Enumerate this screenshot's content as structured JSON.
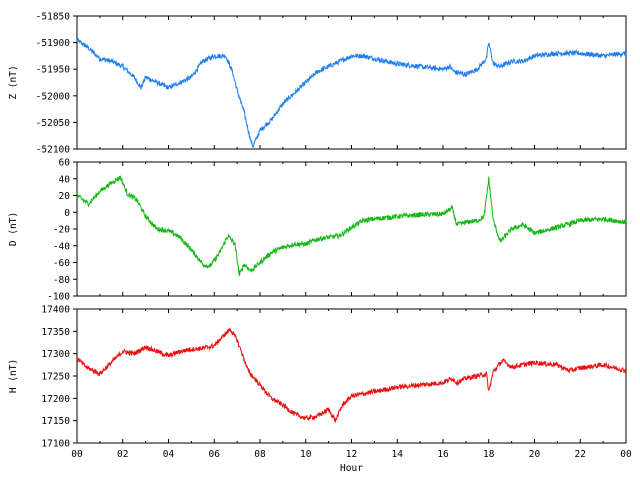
{
  "chart_data": [
    {
      "type": "line",
      "ylabel": "Z (nT)",
      "ylim": [
        -52100,
        -51850
      ],
      "yticks": [
        -51850,
        -51900,
        -51950,
        -52000,
        -52050,
        -52100
      ],
      "xlim": [
        0,
        24
      ],
      "grid": false,
      "series": [
        {
          "color": "#1e7ef0",
          "x": [
            0,
            0.5,
            1,
            1.5,
            2,
            2.5,
            2.8,
            3,
            3.5,
            4,
            4.5,
            5,
            5.5,
            6,
            6.5,
            6.8,
            7,
            7.3,
            7.6,
            7.7,
            8,
            8.5,
            9,
            9.5,
            10,
            10.5,
            11,
            11.5,
            12,
            12.5,
            13,
            13.5,
            14,
            15,
            16,
            16.3,
            16.5,
            17,
            17.5,
            17.9,
            18,
            18.2,
            18.5,
            19,
            19.5,
            20,
            21,
            22,
            23,
            24
          ],
          "y": [
            -51895,
            -51910,
            -51930,
            -51935,
            -51945,
            -51965,
            -51985,
            -51965,
            -51975,
            -51985,
            -51975,
            -51965,
            -51935,
            -51925,
            -51925,
            -51955,
            -51990,
            -52030,
            -52085,
            -52095,
            -52065,
            -52045,
            -52015,
            -51995,
            -51975,
            -51955,
            -51945,
            -51935,
            -51925,
            -51925,
            -51930,
            -51935,
            -51940,
            -51945,
            -51950,
            -51945,
            -51955,
            -51960,
            -51950,
            -51930,
            -51900,
            -51940,
            -51945,
            -51935,
            -51935,
            -51925,
            -51920,
            -51920,
            -51925,
            -51920
          ]
        }
      ]
    },
    {
      "type": "line",
      "ylabel": "D (nT)",
      "ylim": [
        -100,
        60
      ],
      "yticks": [
        60,
        40,
        20,
        0,
        -20,
        -40,
        -60,
        -80,
        -100
      ],
      "xlim": [
        0,
        24
      ],
      "grid": false,
      "series": [
        {
          "color": "#14b814",
          "x": [
            0,
            0.5,
            1,
            1.5,
            1.9,
            2.2,
            2.6,
            3,
            3.5,
            4,
            4.5,
            5,
            5.5,
            5.8,
            6.2,
            6.6,
            6.9,
            7.1,
            7.3,
            7.6,
            8,
            8.5,
            9,
            9.5,
            10,
            10.5,
            11,
            11.5,
            12,
            12.5,
            13,
            14,
            15,
            16,
            16.4,
            16.6,
            17,
            17.5,
            17.8,
            18,
            18.2,
            18.5,
            19,
            19.5,
            20,
            21,
            22,
            23,
            24
          ],
          "y": [
            20,
            10,
            25,
            35,
            42,
            22,
            15,
            -5,
            -20,
            -22,
            -30,
            -45,
            -62,
            -65,
            -50,
            -28,
            -38,
            -75,
            -62,
            -70,
            -60,
            -48,
            -42,
            -38,
            -38,
            -32,
            -30,
            -28,
            -18,
            -10,
            -8,
            -5,
            -3,
            -2,
            5,
            -15,
            -12,
            -10,
            -5,
            40,
            -10,
            -35,
            -20,
            -15,
            -25,
            -18,
            -10,
            -8,
            -12
          ]
        }
      ]
    },
    {
      "type": "line",
      "ylabel": "H (nT)",
      "xlabel": "Hour",
      "ylim": [
        17100,
        17400
      ],
      "yticks": [
        17400,
        17350,
        17300,
        17250,
        17200,
        17150,
        17100
      ],
      "xlim": [
        0,
        24
      ],
      "xticks": [
        "00",
        "02",
        "04",
        "06",
        "08",
        "10",
        "12",
        "14",
        "16",
        "18",
        "20",
        "22",
        "00"
      ],
      "grid": false,
      "series": [
        {
          "color": "#e81010",
          "x": [
            0,
            0.4,
            1,
            1.5,
            2,
            2.5,
            3,
            3.5,
            4,
            4.5,
            5,
            5.5,
            6,
            6.4,
            6.7,
            7,
            7.5,
            8,
            8.5,
            9,
            9.5,
            10,
            10.5,
            11,
            11.3,
            11.6,
            12,
            13,
            14,
            15,
            16,
            16.4,
            16.6,
            17,
            17.5,
            17.9,
            18,
            18.2,
            18.6,
            19,
            20,
            21,
            21.5,
            22,
            23,
            24
          ],
          "y": [
            17290,
            17270,
            17255,
            17280,
            17305,
            17300,
            17315,
            17305,
            17295,
            17305,
            17310,
            17312,
            17318,
            17340,
            17355,
            17330,
            17260,
            17230,
            17200,
            17185,
            17165,
            17155,
            17160,
            17175,
            17150,
            17185,
            17205,
            17215,
            17225,
            17230,
            17235,
            17245,
            17235,
            17245,
            17250,
            17255,
            17215,
            17260,
            17285,
            17270,
            17280,
            17275,
            17262,
            17268,
            17275,
            17262
          ]
        }
      ]
    }
  ]
}
